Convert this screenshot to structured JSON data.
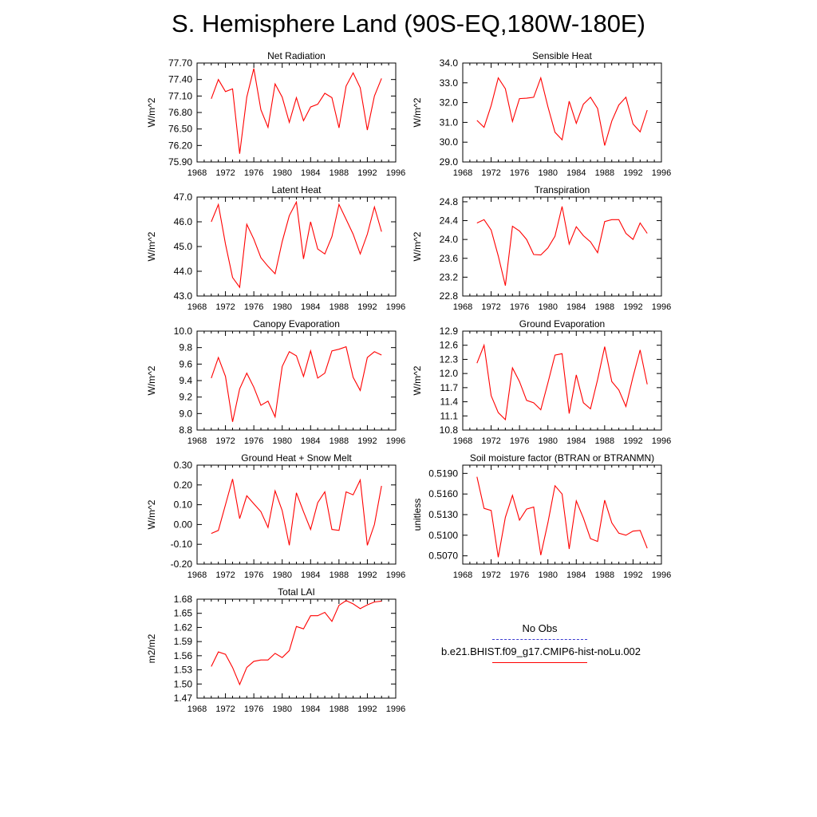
{
  "title": "S. Hemisphere Land (90S-EQ,180W-180E)",
  "legend": {
    "obs_label": "No Obs",
    "model_label": "b.e21.BHIST.f09_g17.CMIP6-hist-noLu.002",
    "obs_color": "#3a3ad0",
    "model_color": "#ff0000"
  },
  "chart_data": [
    {
      "type": "line",
      "title": "Net Radiation",
      "ylabel": "W/m^2",
      "xlim": [
        1968,
        1996
      ],
      "xticks": [
        "1968",
        "1972",
        "1976",
        "1980",
        "1984",
        "1988",
        "1992",
        "1996"
      ],
      "ylim": [
        75.9,
        77.7
      ],
      "yticks": [
        "75.90",
        "76.20",
        "76.50",
        "76.80",
        "77.10",
        "77.40",
        "77.70"
      ],
      "x": [
        1970,
        1971,
        1972,
        1973,
        1974,
        1975,
        1976,
        1977,
        1978,
        1979,
        1980,
        1981,
        1982,
        1983,
        1984,
        1985,
        1986,
        1987,
        1988,
        1989,
        1990,
        1991,
        1992,
        1993,
        1994
      ],
      "series": [
        {
          "values": [
            77.05,
            77.4,
            77.18,
            77.23,
            76.05,
            77.08,
            77.6,
            76.85,
            76.53,
            77.32,
            77.08,
            76.62,
            77.07,
            76.65,
            76.9,
            76.95,
            77.15,
            77.07,
            76.52,
            77.28,
            77.52,
            77.25,
            76.48,
            77.1,
            77.42
          ]
        }
      ]
    },
    {
      "type": "line",
      "title": "Sensible Heat",
      "ylabel": "W/m^2",
      "xlim": [
        1968,
        1996
      ],
      "xticks": [
        "1968",
        "1972",
        "1976",
        "1980",
        "1984",
        "1988",
        "1992",
        "1996"
      ],
      "ylim": [
        29.0,
        34.0
      ],
      "yticks": [
        "29.0",
        "30.0",
        "31.0",
        "32.0",
        "33.0",
        "34.0"
      ],
      "x": [
        1970,
        1971,
        1972,
        1973,
        1974,
        1975,
        1976,
        1977,
        1978,
        1979,
        1980,
        1981,
        1982,
        1983,
        1984,
        1985,
        1986,
        1987,
        1988,
        1989,
        1990,
        1991,
        1992,
        1993,
        1994
      ],
      "series": [
        {
          "values": [
            31.1,
            30.75,
            31.85,
            33.25,
            32.7,
            31.05,
            32.2,
            32.22,
            32.27,
            33.25,
            31.8,
            30.5,
            30.12,
            32.07,
            30.95,
            31.92,
            32.27,
            31.7,
            29.83,
            31.07,
            31.88,
            32.27,
            30.92,
            30.52,
            31.62
          ]
        }
      ]
    },
    {
      "type": "line",
      "title": "Latent Heat",
      "ylabel": "W/m^2",
      "xlim": [
        1968,
        1996
      ],
      "xticks": [
        "1968",
        "1972",
        "1976",
        "1980",
        "1984",
        "1988",
        "1992",
        "1996"
      ],
      "ylim": [
        43.0,
        47.0
      ],
      "yticks": [
        "43.0",
        "44.0",
        "45.0",
        "46.0",
        "47.0"
      ],
      "x": [
        1970,
        1971,
        1972,
        1973,
        1974,
        1975,
        1976,
        1977,
        1978,
        1979,
        1980,
        1981,
        1982,
        1983,
        1984,
        1985,
        1986,
        1987,
        1988,
        1989,
        1990,
        1991,
        1992,
        1993,
        1994
      ],
      "series": [
        {
          "values": [
            46.0,
            46.7,
            45.1,
            43.75,
            43.35,
            45.9,
            45.3,
            44.55,
            44.2,
            43.9,
            45.2,
            46.25,
            46.8,
            44.5,
            46.0,
            44.9,
            44.7,
            45.4,
            46.7,
            46.1,
            45.5,
            44.7,
            45.5,
            46.6,
            45.6
          ]
        }
      ]
    },
    {
      "type": "line",
      "title": "Transpiration",
      "ylabel": "W/m^2",
      "xlim": [
        1968,
        1996
      ],
      "xticks": [
        "1968",
        "1972",
        "1976",
        "1980",
        "1984",
        "1988",
        "1992",
        "1996"
      ],
      "ylim": [
        22.8,
        24.9
      ],
      "yticks": [
        "22.8",
        "23.2",
        "23.6",
        "24.0",
        "24.4",
        "24.8"
      ],
      "x": [
        1970,
        1971,
        1972,
        1973,
        1974,
        1975,
        1976,
        1977,
        1978,
        1979,
        1980,
        1981,
        1982,
        1983,
        1984,
        1985,
        1986,
        1987,
        1988,
        1989,
        1990,
        1991,
        1992,
        1993,
        1994
      ],
      "series": [
        {
          "values": [
            24.35,
            24.42,
            24.2,
            23.65,
            23.02,
            24.28,
            24.18,
            24.0,
            23.68,
            23.67,
            23.82,
            24.07,
            24.7,
            23.9,
            24.27,
            24.08,
            23.95,
            23.72,
            24.38,
            24.42,
            24.42,
            24.13,
            24.0,
            24.35,
            24.13
          ]
        }
      ]
    },
    {
      "type": "line",
      "title": "Canopy Evaporation",
      "ylabel": "W/m^2",
      "xlim": [
        1968,
        1996
      ],
      "xticks": [
        "1968",
        "1972",
        "1976",
        "1980",
        "1984",
        "1988",
        "1992",
        "1996"
      ],
      "ylim": [
        8.8,
        10.0
      ],
      "yticks": [
        "8.8",
        "9.0",
        "9.2",
        "9.4",
        "9.6",
        "9.8",
        "10.0"
      ],
      "x": [
        1970,
        1971,
        1972,
        1973,
        1974,
        1975,
        1976,
        1977,
        1978,
        1979,
        1980,
        1981,
        1982,
        1983,
        1984,
        1985,
        1986,
        1987,
        1988,
        1989,
        1990,
        1991,
        1992,
        1993,
        1994
      ],
      "series": [
        {
          "values": [
            9.43,
            9.68,
            9.45,
            8.9,
            9.3,
            9.49,
            9.32,
            9.1,
            9.15,
            8.96,
            9.57,
            9.75,
            9.7,
            9.45,
            9.76,
            9.43,
            9.49,
            9.76,
            9.78,
            9.81,
            9.44,
            9.28,
            9.68,
            9.75,
            9.71
          ]
        }
      ]
    },
    {
      "type": "line",
      "title": "Ground Evaporation",
      "ylabel": "W/m^2",
      "xlim": [
        1968,
        1996
      ],
      "xticks": [
        "1968",
        "1972",
        "1976",
        "1980",
        "1984",
        "1988",
        "1992",
        "1996"
      ],
      "ylim": [
        10.8,
        12.9
      ],
      "yticks": [
        "10.8",
        "11.1",
        "11.4",
        "11.7",
        "12.0",
        "12.3",
        "12.6",
        "12.9"
      ],
      "x": [
        1970,
        1971,
        1972,
        1973,
        1974,
        1975,
        1976,
        1977,
        1978,
        1979,
        1980,
        1981,
        1982,
        1983,
        1984,
        1985,
        1986,
        1987,
        1988,
        1989,
        1990,
        1991,
        1992,
        1993,
        1994
      ],
      "series": [
        {
          "values": [
            12.22,
            12.6,
            11.53,
            11.17,
            11.02,
            12.12,
            11.83,
            11.43,
            11.38,
            11.23,
            11.8,
            12.39,
            12.42,
            11.15,
            11.97,
            11.38,
            11.25,
            11.87,
            12.57,
            11.83,
            11.65,
            11.3,
            11.93,
            12.5,
            11.77
          ]
        }
      ]
    },
    {
      "type": "line",
      "title": "Ground Heat + Snow Melt",
      "ylabel": "W/m^2",
      "xlim": [
        1968,
        1996
      ],
      "xticks": [
        "1968",
        "1972",
        "1976",
        "1980",
        "1984",
        "1988",
        "1992",
        "1996"
      ],
      "ylim": [
        -0.2,
        0.3
      ],
      "yticks": [
        "-0.20",
        "-0.10",
        "0.00",
        "0.10",
        "0.20",
        "0.30"
      ],
      "x": [
        1970,
        1971,
        1972,
        1973,
        1974,
        1975,
        1976,
        1977,
        1978,
        1979,
        1980,
        1981,
        1982,
        1983,
        1984,
        1985,
        1986,
        1987,
        1988,
        1989,
        1990,
        1991,
        1992,
        1993,
        1994
      ],
      "series": [
        {
          "values": [
            -0.045,
            -0.03,
            0.1,
            0.23,
            0.03,
            0.145,
            0.105,
            0.065,
            -0.015,
            0.17,
            0.07,
            -0.105,
            0.16,
            0.065,
            -0.025,
            0.11,
            0.165,
            -0.025,
            -0.03,
            0.165,
            0.15,
            0.225,
            -0.105,
            0.0,
            0.195
          ]
        }
      ]
    },
    {
      "type": "line",
      "title": "Soil moisture factor (BTRAN or BTRANMN)",
      "ylabel": "unitless",
      "xlim": [
        1968,
        1996
      ],
      "xticks": [
        "1968",
        "1972",
        "1976",
        "1980",
        "1984",
        "1988",
        "1992",
        "1996"
      ],
      "ylim": [
        0.5058,
        0.5202
      ],
      "yticks": [
        "0.5070",
        "0.5100",
        "0.5130",
        "0.5160",
        "0.5190"
      ],
      "x": [
        1970,
        1971,
        1972,
        1973,
        1974,
        1975,
        1976,
        1977,
        1978,
        1979,
        1980,
        1981,
        1982,
        1983,
        1984,
        1985,
        1986,
        1987,
        1988,
        1989,
        1990,
        1991,
        1992,
        1993,
        1994
      ],
      "series": [
        {
          "values": [
            0.5185,
            0.5139,
            0.5136,
            0.5068,
            0.5126,
            0.5158,
            0.5122,
            0.5138,
            0.5141,
            0.5071,
            0.5118,
            0.5172,
            0.516,
            0.508,
            0.515,
            0.5125,
            0.5095,
            0.5091,
            0.5151,
            0.5118,
            0.5103,
            0.51,
            0.5106,
            0.5107,
            0.5081
          ]
        }
      ]
    },
    {
      "type": "line",
      "title": "Total LAI",
      "ylabel": "m2/m2",
      "xlim": [
        1968,
        1996
      ],
      "xticks": [
        "1968",
        "1972",
        "1976",
        "1980",
        "1984",
        "1988",
        "1992",
        "1996"
      ],
      "ylim": [
        1.47,
        1.68
      ],
      "yticks": [
        "1.47",
        "1.50",
        "1.53",
        "1.56",
        "1.59",
        "1.62",
        "1.65",
        "1.68"
      ],
      "x": [
        1970,
        1971,
        1972,
        1973,
        1974,
        1975,
        1976,
        1977,
        1978,
        1979,
        1980,
        1981,
        1982,
        1983,
        1984,
        1985,
        1986,
        1987,
        1988,
        1989,
        1990,
        1991,
        1992,
        1993,
        1994
      ],
      "series": [
        {
          "values": [
            1.537,
            1.568,
            1.563,
            1.535,
            1.499,
            1.535,
            1.548,
            1.551,
            1.551,
            1.565,
            1.556,
            1.571,
            1.622,
            1.617,
            1.645,
            1.645,
            1.652,
            1.633,
            1.667,
            1.677,
            1.67,
            1.66,
            1.668,
            1.674,
            1.676
          ]
        }
      ]
    }
  ]
}
